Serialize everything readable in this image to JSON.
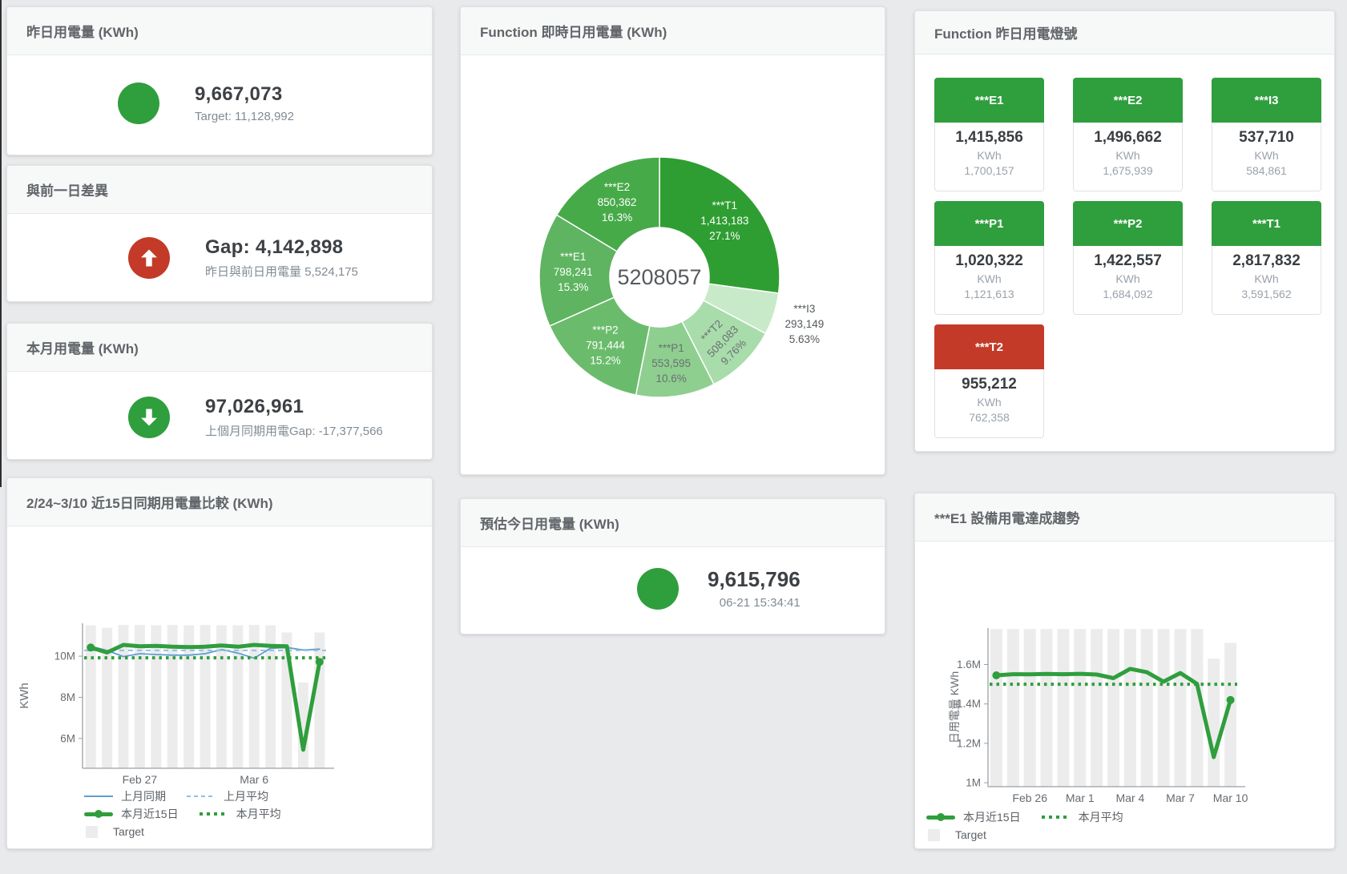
{
  "stat_cards": [
    {
      "title": "昨日用電量 (KWh)",
      "value": "9,667,073",
      "subtitle": "Target: 11,128,992",
      "icon": "circle",
      "icon_color": "green"
    },
    {
      "title": "與前一日差異",
      "value": "Gap: 4,142,898",
      "subtitle": "昨日與前日用電量 5,524,175",
      "icon": "arrow-up",
      "icon_color": "red"
    },
    {
      "title": "本月用電量 (KWh)",
      "value": "97,026,961",
      "subtitle": "上個月同期用電Gap: -17,377,566",
      "icon": "arrow-down",
      "icon_color": "green"
    }
  ],
  "estimate_card": {
    "title": "預估今日用電量 (KWh)",
    "value": "9,615,796",
    "timestamp": "06-21 15:34:41"
  },
  "donut_card": {
    "title": "Function 即時日用電量 (KWh)"
  },
  "tiles_card": {
    "title": "Function 昨日用電燈號",
    "unit": "KWh",
    "tiles": [
      {
        "name": "***E1",
        "value": "1,415,856",
        "target": "1,700,157",
        "status": "green"
      },
      {
        "name": "***E2",
        "value": "1,496,662",
        "target": "1,675,939",
        "status": "green"
      },
      {
        "name": "***I3",
        "value": "537,710",
        "target": "584,861",
        "status": "green"
      },
      {
        "name": "***P1",
        "value": "1,020,322",
        "target": "1,121,613",
        "status": "green"
      },
      {
        "name": "***P2",
        "value": "1,422,557",
        "target": "1,684,092",
        "status": "green"
      },
      {
        "name": "***T1",
        "value": "2,817,832",
        "target": "3,591,562",
        "status": "green"
      },
      {
        "name": "***T2",
        "value": "955,212",
        "target": "762,358",
        "status": "red"
      }
    ]
  },
  "compare_card": {
    "title": "2/24~3/10 近15日同期用電量比較 (KWh)"
  },
  "trend_card": {
    "title": "***E1 設備用電達成趨勢"
  },
  "colors": {
    "green": "#2f9e3d",
    "red": "#c33b28",
    "target_bar": "#ececec",
    "blue": "#5e9fd0",
    "blue_light": "#93c0e4",
    "axis_text": "#666b70",
    "axis_line": "#9aa0a6"
  },
  "chart_data": [
    {
      "type": "pie",
      "title": "Function 即時日用電量 (KWh)",
      "center_label": "5208057",
      "legend_position": "none",
      "slices": [
        {
          "name": "***T1",
          "value": 1413183,
          "value_label": "1,413,183",
          "percent": "27.1%",
          "color": "#2f9e32",
          "label_style": "light"
        },
        {
          "name": "***I3",
          "value": 293149,
          "value_label": "293,149",
          "percent": "5.63%",
          "color": "#c8eac9",
          "label_style": "outside"
        },
        {
          "name": "***T2",
          "value": 508083,
          "value_label": "508,083",
          "percent": "9.76%",
          "color": "#a9dcab",
          "label_style": "dark-rotated"
        },
        {
          "name": "***P1",
          "value": 553595,
          "value_label": "553,595",
          "percent": "10.6%",
          "color": "#8ecf90",
          "label_style": "dark"
        },
        {
          "name": "***P2",
          "value": 791444,
          "value_label": "791,444",
          "percent": "15.2%",
          "color": "#6abc6c",
          "label_style": "light"
        },
        {
          "name": "***E1",
          "value": 798241,
          "value_label": "798,241",
          "percent": "15.3%",
          "color": "#5eb460",
          "label_style": "light"
        },
        {
          "name": "***E2",
          "value": 850362,
          "value_label": "850,362",
          "percent": "16.3%",
          "color": "#47aa49",
          "label_style": "light"
        }
      ]
    },
    {
      "type": "line",
      "title": "2/24~3/10 近15日同期用電量比較 (KWh)",
      "ylabel": "KWh",
      "ylim_m": [
        4.55,
        11.6
      ],
      "yticks": [
        {
          "v": 6,
          "label": "6M"
        },
        {
          "v": 8,
          "label": "8M"
        },
        {
          "v": 10,
          "label": "10M"
        }
      ],
      "n": 15,
      "xticks": [
        {
          "i": 3,
          "label": "Feb 27"
        },
        {
          "i": 10,
          "label": "Mar 6"
        }
      ],
      "target_name": "Target",
      "target_bars_m": [
        11.5,
        11.38,
        11.52,
        11.52,
        11.5,
        11.52,
        11.5,
        11.52,
        11.5,
        11.5,
        11.52,
        11.5,
        11.15,
        8.72,
        11.15
      ],
      "series": [
        {
          "name": "上月同期",
          "style": "thin",
          "color": "#5e9fd0",
          "values_m": [
            10.48,
            10.28,
            9.98,
            10.12,
            10.08,
            10.05,
            10.05,
            10.12,
            10.32,
            10.15,
            9.9,
            10.38,
            10.42,
            10.3,
            10.34
          ]
        },
        {
          "name": "上月平均",
          "style": "dash",
          "color": "#93c0e4",
          "const_m": 10.28
        },
        {
          "name": "本月平均",
          "style": "dot",
          "color": "#2f9e3d",
          "const_m": 9.92
        },
        {
          "name": "本月近15日",
          "style": "thick",
          "color": "#2f9e3d",
          "values_m": [
            10.42,
            10.18,
            10.55,
            10.48,
            10.5,
            10.46,
            10.44,
            10.46,
            10.52,
            10.46,
            10.55,
            10.5,
            10.48,
            5.45,
            9.72
          ]
        }
      ],
      "legend_rows": [
        [
          {
            "label": "上月同期",
            "swatch": "line-blue"
          },
          {
            "label": "上月平均",
            "swatch": "dash-blue"
          }
        ],
        [
          {
            "label": "本月近15日",
            "swatch": "thick-green"
          },
          {
            "label": "本月平均",
            "swatch": "dot-green"
          }
        ],
        [
          {
            "label": "Target",
            "swatch": "square-gray"
          }
        ]
      ]
    },
    {
      "type": "line",
      "title": "***E1 設備用電達成趨勢",
      "ylabel": "日用電量 KWh",
      "ylim_m": [
        0.98,
        1.785
      ],
      "yticks": [
        {
          "v": 1,
          "label": "1M"
        },
        {
          "v": 1.2,
          "label": "1.2M"
        },
        {
          "v": 1.4,
          "label": "1.4M"
        },
        {
          "v": 1.6,
          "label": "1.6M"
        }
      ],
      "n": 15,
      "xticks": [
        {
          "i": 2,
          "label": "Feb 26"
        },
        {
          "i": 5,
          "label": "Mar 1"
        },
        {
          "i": 8,
          "label": "Mar 4"
        },
        {
          "i": 11,
          "label": "Mar 7"
        },
        {
          "i": 14,
          "label": "Mar 10"
        }
      ],
      "target_name": "Target",
      "target_bars_m": [
        1.78,
        1.78,
        1.78,
        1.78,
        1.78,
        1.78,
        1.78,
        1.78,
        1.78,
        1.78,
        1.78,
        1.78,
        1.78,
        1.63,
        1.71
      ],
      "series": [
        {
          "name": "本月平均",
          "style": "dot",
          "color": "#2f9e3d",
          "const_m": 1.5
        },
        {
          "name": "本月近15日",
          "style": "thick",
          "color": "#2f9e3d",
          "values_m": [
            1.545,
            1.551,
            1.55,
            1.552,
            1.551,
            1.553,
            1.549,
            1.531,
            1.578,
            1.561,
            1.513,
            1.557,
            1.502,
            1.13,
            1.42
          ]
        }
      ],
      "legend_rows": [
        [
          {
            "label": "本月近15日",
            "swatch": "thick-green"
          },
          {
            "label": "本月平均",
            "swatch": "dot-green"
          }
        ],
        [
          {
            "label": "Target",
            "swatch": "square-gray"
          }
        ]
      ]
    }
  ]
}
